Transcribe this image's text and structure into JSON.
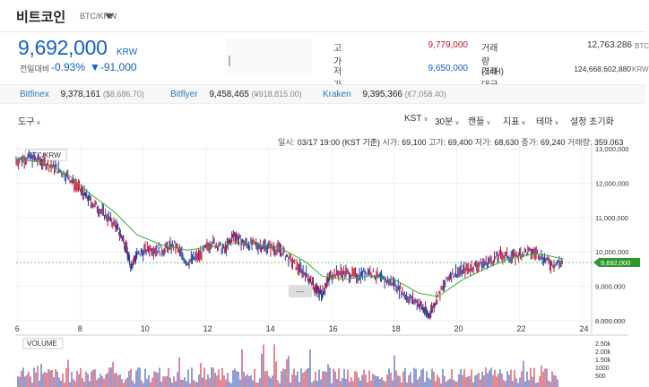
{
  "header": {
    "title": "비트코인",
    "pair": "BTC/KRW"
  },
  "price": {
    "current": "9,692,000",
    "unit": "KRW",
    "change_label": "전일대비",
    "change_rate": "-0.93%",
    "change_amount": "▼-91,000"
  },
  "stats": {
    "high_label": "고가",
    "high": "9,779,000",
    "low_label": "저가",
    "low": "9,650,000",
    "volume_label": "거래량(24H)",
    "volume": "12,763.286",
    "volume_unit": "BTC",
    "amount_label": "거래대금(24H)",
    "amount": "124,668,602,880",
    "amount_unit": "KRW"
  },
  "exchanges": [
    {
      "name": "Bitfinex",
      "price": "9,378,161",
      "diff": "($8,686.70)"
    },
    {
      "name": "Bitflyer",
      "price": "9,458,465",
      "diff": "(¥918,815.00)"
    },
    {
      "name": "Kraken",
      "price": "9,395,366",
      "diff": "(€7,058.40)"
    }
  ],
  "toolbar": {
    "tools": "도구",
    "timezone": "KST",
    "interval": "30분",
    "candle": "캔들",
    "indicator": "지표",
    "theme": "테마",
    "reset": "설정 초기화"
  },
  "ohlc": {
    "time_label": "일시:",
    "time": "03/17 19:00 (KST 기준)",
    "open_label": "시가:",
    "open": "69,100",
    "high_label": "고가:",
    "high": "69,400",
    "low_label": "저가:",
    "low": "68,630",
    "close_label": "종가:",
    "close": "69,240",
    "vol_label": "거래량:",
    "vol": "359.063"
  },
  "colors": {
    "up": "#c8102e",
    "down": "#1b3fa8",
    "ma": "#34b233",
    "accent": "#1261c4"
  },
  "chart_data": {
    "type": "line",
    "title": "BTC/KRW",
    "x_ticks": [
      "6",
      "8",
      "10",
      "12",
      "14",
      "16",
      "18",
      "20",
      "22",
      "24"
    ],
    "y_ticks": [
      "13,000,000",
      "12,000,000",
      "11,000,000",
      "10,000,000",
      "9,000,000",
      "8,000,000"
    ],
    "ylim": [
      8000000,
      13000000
    ],
    "xlim": [
      5.95,
      24.3
    ],
    "current_label": "9,692,000",
    "series": [
      {
        "x": [
          5.95,
          6.4,
          6.8,
          7.2,
          7.6,
          8.0,
          8.3,
          8.7,
          9.1,
          9.4,
          9.6,
          9.8,
          10.2,
          10.6,
          11.0,
          11.4,
          11.8,
          12.2,
          12.6,
          12.9,
          13.2,
          13.6,
          14.0,
          14.4,
          14.8,
          15.2,
          15.5,
          15.7,
          16.0,
          16.4,
          16.8,
          17.2,
          17.6,
          18.0,
          18.4,
          18.8,
          19.1,
          19.4,
          19.8,
          20.2,
          20.6,
          21.0,
          21.4,
          21.8,
          22.2,
          22.6,
          23.0,
          23.4
        ],
        "values": [
          12650000,
          12750000,
          12600000,
          12450000,
          12200000,
          11800000,
          11500000,
          11150000,
          10800000,
          10300000,
          9600000,
          9900000,
          10100000,
          10050000,
          10200000,
          9700000,
          9900000,
          10300000,
          10050000,
          10500000,
          10250000,
          10200000,
          10150000,
          10050000,
          9650000,
          9350000,
          8900000,
          8800000,
          9350000,
          9400000,
          9300000,
          9450000,
          9200000,
          9100000,
          8700000,
          8500000,
          8150000,
          8700000,
          9350000,
          9450000,
          9600000,
          9700000,
          9900000,
          9850000,
          10000000,
          9950000,
          9650000,
          9700000
        ]
      },
      {
        "x": [
          5.95,
          6.8,
          7.6,
          8.3,
          9.1,
          9.8,
          10.6,
          11.4,
          12.2,
          12.9,
          13.6,
          14.4,
          15.2,
          15.7,
          16.4,
          17.2,
          18.0,
          18.8,
          19.4,
          20.2,
          21.0,
          21.8,
          22.6,
          23.4
        ],
        "values": [
          12700000,
          12600000,
          12250000,
          11700000,
          11150000,
          10500000,
          10200000,
          10050000,
          10150000,
          10250000,
          10250000,
          10100000,
          9700000,
          9300000,
          9200000,
          9300000,
          9200000,
          8800000,
          8700000,
          9200000,
          9550000,
          9850000,
          9950000,
          9800000
        ]
      }
    ],
    "volume": {
      "label": "VOLUME",
      "y_ticks": [
        "2.50k",
        "2.00k",
        "1.50k",
        "1000",
        "500"
      ]
    }
  }
}
